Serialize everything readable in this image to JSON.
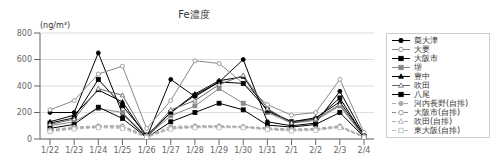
{
  "chart_data": {
    "type": "line",
    "title": "Fe濃度",
    "ylabel": "(ng/m³)",
    "categories": [
      "1/22",
      "1/23",
      "1/24",
      "1/25",
      "1/26",
      "1/27",
      "1/28",
      "1/29",
      "1/30",
      "1/31",
      "2/1",
      "2/2",
      "2/3",
      "2/4"
    ],
    "ylim": [
      0,
      800
    ],
    "yticks": [
      0,
      200,
      400,
      600,
      800
    ],
    "grid": "y",
    "legend": "right",
    "series": [
      {
        "name": "奠大津",
        "color": "#000000",
        "marker": "circle",
        "line_style": "solid",
        "values": [
          200,
          200,
          650,
          190,
          10,
          450,
          320,
          430,
          600,
          130,
          100,
          120,
          360,
          30
        ]
      },
      {
        "name": "大要",
        "color": "#888888",
        "marker": "circle-open",
        "line_style": "solid",
        "values": [
          220,
          290,
          490,
          550,
          80,
          290,
          590,
          570,
          420,
          260,
          180,
          200,
          450,
          50
        ]
      },
      {
        "name": "大阪市",
        "color": "#000000",
        "marker": "square",
        "line_style": "solid",
        "values": [
          120,
          160,
          450,
          250,
          30,
          200,
          330,
          430,
          420,
          220,
          130,
          150,
          310,
          20
        ]
      },
      {
        "name": "堺",
        "color": "#888888",
        "marker": "square",
        "line_style": "solid",
        "values": [
          100,
          130,
          230,
          200,
          20,
          175,
          250,
          380,
          270,
          200,
          120,
          140,
          250,
          15
        ]
      },
      {
        "name": "豊中",
        "color": "#000000",
        "marker": "triangle",
        "line_style": "solid",
        "values": [
          130,
          180,
          370,
          280,
          15,
          200,
          340,
          440,
          470,
          210,
          130,
          160,
          280,
          25
        ]
      },
      {
        "name": "吹田",
        "color": "#666666",
        "marker": "triangle-open",
        "line_style": "solid",
        "values": [
          110,
          150,
          380,
          330,
          20,
          220,
          290,
          410,
          480,
          230,
          120,
          150,
          260,
          20
        ]
      },
      {
        "name": "八尾",
        "color": "#000000",
        "marker": "square",
        "line_style": "solid",
        "values": [
          80,
          110,
          240,
          155,
          10,
          130,
          200,
          270,
          220,
          105,
          90,
          110,
          200,
          15
        ]
      },
      {
        "name": "河内長野(自排)",
        "color": "#aaaaaa",
        "marker": "circle",
        "line_style": "dashed",
        "values": [
          70,
          90,
          100,
          100,
          25,
          95,
          100,
          100,
          95,
          85,
          75,
          80,
          100,
          20
        ]
      },
      {
        "name": "大阪市(自排)",
        "color": "#888888",
        "marker": "circle-open",
        "line_style": "dashed",
        "values": [
          60,
          80,
          90,
          90,
          20,
          80,
          90,
          90,
          90,
          75,
          65,
          70,
          90,
          15
        ]
      },
      {
        "name": "吹田(自排)",
        "color": "#aaaaaa",
        "marker": "triangle-open",
        "line_style": "dashed",
        "values": [
          65,
          85,
          95,
          95,
          15,
          85,
          95,
          95,
          90,
          80,
          70,
          75,
          95,
          18
        ]
      },
      {
        "name": "東大阪(自排)",
        "color": "#bbbbbb",
        "marker": "square-open",
        "line_style": "dashed",
        "values": [
          55,
          75,
          85,
          80,
          10,
          75,
          85,
          85,
          85,
          70,
          60,
          65,
          85,
          12
        ]
      }
    ]
  }
}
